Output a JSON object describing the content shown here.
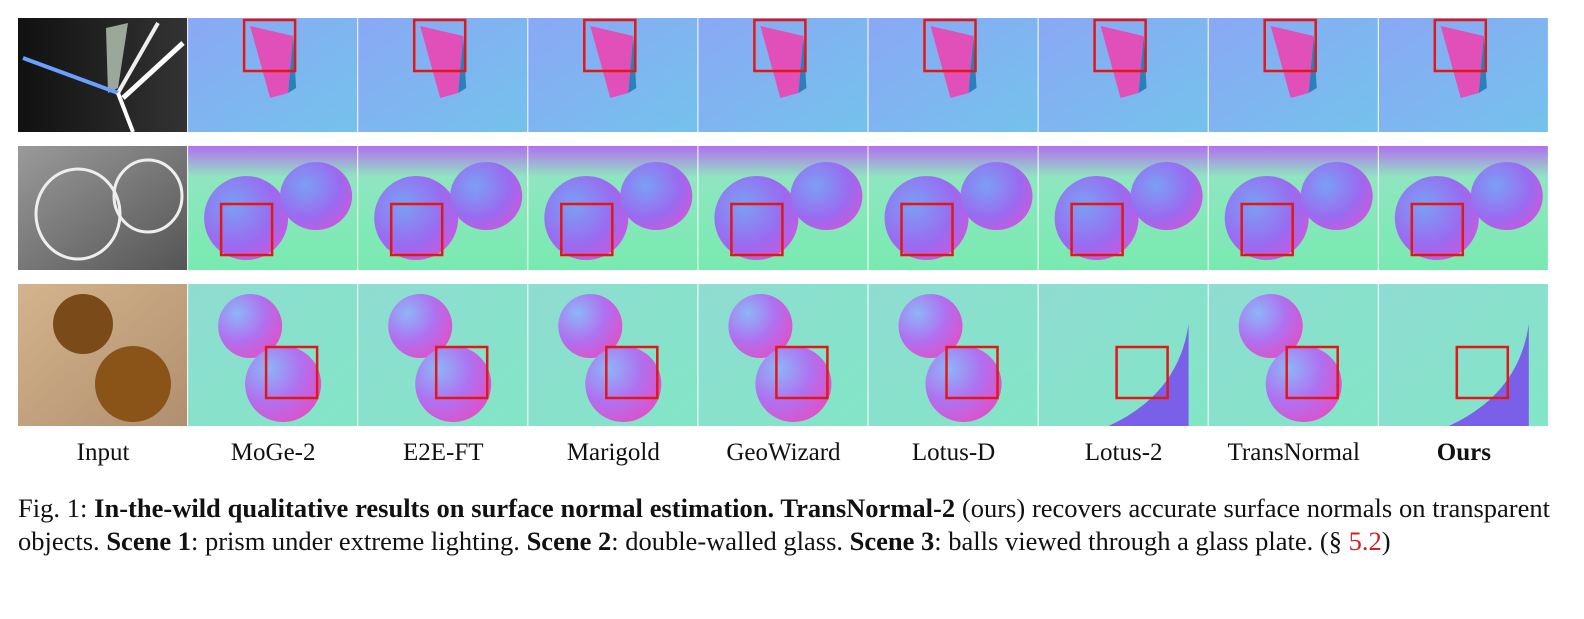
{
  "figure": {
    "columns": [
      "Input",
      "MoGe-2",
      "E2E-FT",
      "Marigold",
      "GeoWizard",
      "Lotus-D",
      "Lotus-2",
      "TransNormal",
      "Ours"
    ],
    "caption": [
      "Fig. 1: ",
      "In-the-wild qualitative results on surface normal estimation. TransNormal-2",
      " (ours) recovers accurate surface normals on transparent objects. ",
      "Scene 1",
      ": prism under extreme lighting. ",
      "Scene 2",
      ": double-walled glass. ",
      "Scene 3",
      ": balls viewed through a glass plate. (§ ",
      "5.2",
      ")"
    ]
  }
}
